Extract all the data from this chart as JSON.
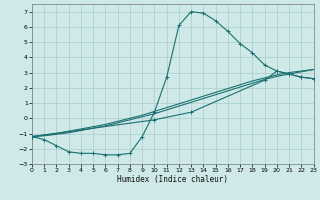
{
  "xlabel": "Humidex (Indice chaleur)",
  "xlim": [
    0,
    23
  ],
  "ylim": [
    -3,
    7.5
  ],
  "yticks": [
    -3,
    -2,
    -1,
    0,
    1,
    2,
    3,
    4,
    5,
    6,
    7
  ],
  "xticks": [
    0,
    1,
    2,
    3,
    4,
    5,
    6,
    7,
    8,
    9,
    10,
    11,
    12,
    13,
    14,
    15,
    16,
    17,
    18,
    19,
    20,
    21,
    22,
    23
  ],
  "background_color": "#cfe8e8",
  "grid_color": "#aacccc",
  "line_color": "#1a7070",
  "line1_x": [
    0,
    1,
    2,
    3,
    4,
    5,
    6,
    7,
    8,
    9,
    10,
    11,
    12,
    13,
    14,
    15,
    16,
    17,
    18,
    19,
    20,
    21,
    22,
    23
  ],
  "line1_y": [
    -1.2,
    -1.4,
    -1.8,
    -2.2,
    -2.3,
    -2.3,
    -2.4,
    -2.4,
    -2.3,
    -1.2,
    0.4,
    2.7,
    6.1,
    7.0,
    6.9,
    6.4,
    5.7,
    4.9,
    4.3,
    3.5,
    3.1,
    2.9,
    2.7,
    2.6
  ],
  "line2_x": [
    0,
    10,
    13,
    19,
    20,
    21,
    22,
    23
  ],
  "line2_y": [
    -1.2,
    -0.1,
    0.4,
    2.5,
    3.1,
    2.9,
    2.7,
    2.6
  ],
  "line3_x": [
    0,
    1,
    2,
    3,
    4,
    5,
    6,
    7,
    8,
    9,
    10,
    11,
    12,
    13,
    14,
    15,
    16,
    17,
    18,
    19,
    20,
    21,
    22,
    23
  ],
  "line3_y": [
    -1.2,
    -1.15,
    -1.05,
    -0.95,
    -0.8,
    -0.65,
    -0.5,
    -0.3,
    -0.1,
    0.1,
    0.3,
    0.55,
    0.8,
    1.05,
    1.3,
    1.55,
    1.8,
    2.05,
    2.3,
    2.55,
    2.75,
    2.9,
    3.05,
    3.2
  ],
  "line4_x": [
    0,
    1,
    2,
    3,
    4,
    5,
    6,
    7,
    8,
    9,
    10,
    11,
    12,
    13,
    14,
    15,
    16,
    17,
    18,
    19,
    20,
    21,
    22,
    23
  ],
  "line4_y": [
    -1.2,
    -1.1,
    -1.0,
    -0.85,
    -0.7,
    -0.55,
    -0.4,
    -0.2,
    0.0,
    0.2,
    0.45,
    0.7,
    0.95,
    1.2,
    1.45,
    1.7,
    1.95,
    2.2,
    2.45,
    2.65,
    2.85,
    3.0,
    3.1,
    3.2
  ]
}
